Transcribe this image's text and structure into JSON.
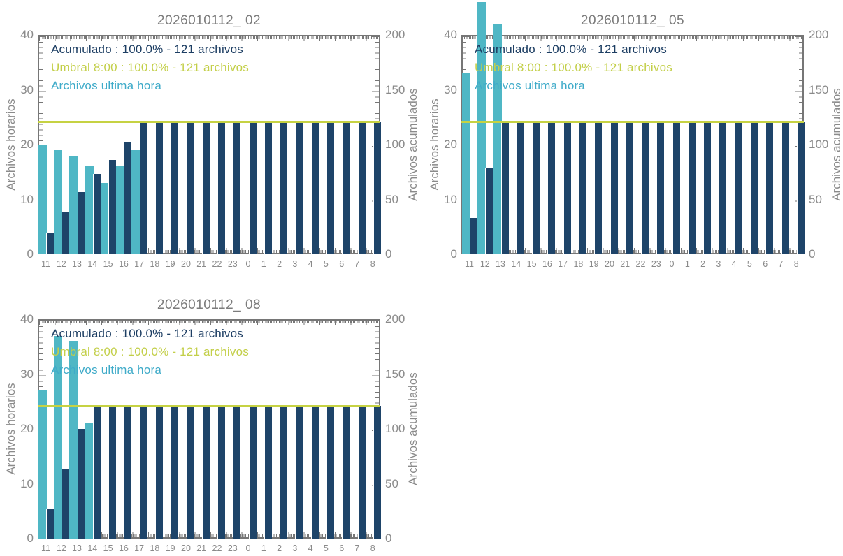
{
  "page": {
    "background": "#ffffff"
  },
  "colors": {
    "teal_bar": "#4FB7C5",
    "navy_bar": "#1E4469",
    "threshold_line": "#C6D243",
    "legend_navy_text": "#1D3E63",
    "legend_yellow_text": "#C3CF49",
    "legend_teal_text": "#3FABC9",
    "axis_frame": "#767676",
    "axis_label_grey": "#8A8A8A",
    "title_grey": "#7C7C7C"
  },
  "chart_data": [
    {
      "type": "bar",
      "title": "2026010112_ 02",
      "x_categories": [
        "11",
        "12",
        "13",
        "14",
        "15",
        "16",
        "17",
        "18",
        "19",
        "20",
        "21",
        "22",
        "23",
        "0",
        "1",
        "2",
        "3",
        "4",
        "5",
        "6",
        "7",
        "8"
      ],
      "series": [
        {
          "name": "Archivos ultima hora",
          "axis": "left",
          "color": "#4FB7C5",
          "values": [
            20,
            19,
            18,
            16,
            13,
            16,
            19,
            0,
            0,
            0,
            0,
            0,
            0,
            0,
            0,
            0,
            0,
            0,
            0,
            0,
            0,
            0
          ]
        },
        {
          "name": "Acumulado",
          "axis": "right",
          "color": "#1E4469",
          "values": [
            20,
            39,
            57,
            73,
            86,
            102,
            121,
            121,
            121,
            121,
            121,
            121,
            121,
            121,
            121,
            121,
            121,
            121,
            121,
            121,
            121,
            121
          ]
        }
      ],
      "threshold": {
        "name": "Umbral 8:00",
        "axis": "right",
        "value": 121,
        "color": "#C6D243"
      },
      "legend_lines": [
        {
          "text": "Acumulado : 100.0% - 121 archivos",
          "color": "#1D3E63"
        },
        {
          "text": "Umbral 8:00 : 100.0% - 121 archivos",
          "color": "#C3CF49"
        },
        {
          "text": "Archivos ultima hora",
          "color": "#3FABC9"
        }
      ],
      "left_axis": {
        "label": "Archivos horarios",
        "range": [
          0,
          40
        ],
        "ticks": [
          40,
          30,
          20,
          10,
          0
        ]
      },
      "right_axis": {
        "label": "Archivos acumulados",
        "range": [
          0,
          200
        ],
        "ticks": [
          200,
          150,
          100,
          50,
          0
        ]
      },
      "grid": false,
      "legend_position": "top-left-inside"
    },
    {
      "type": "bar",
      "title": "2026010112_ 05",
      "x_categories": [
        "11",
        "12",
        "13",
        "14",
        "15",
        "16",
        "17",
        "18",
        "19",
        "20",
        "21",
        "22",
        "23",
        "0",
        "1",
        "2",
        "3",
        "4",
        "5",
        "6",
        "7",
        "8"
      ],
      "series": [
        {
          "name": "Archivos ultima hora",
          "axis": "left",
          "color": "#4FB7C5",
          "values": [
            33,
            46,
            42,
            0,
            0,
            0,
            0,
            0,
            0,
            0,
            0,
            0,
            0,
            0,
            0,
            0,
            0,
            0,
            0,
            0,
            0,
            0
          ]
        },
        {
          "name": "Acumulado",
          "axis": "right",
          "color": "#1E4469",
          "values": [
            33,
            79,
            121,
            121,
            121,
            121,
            121,
            121,
            121,
            121,
            121,
            121,
            121,
            121,
            121,
            121,
            121,
            121,
            121,
            121,
            121,
            121
          ]
        }
      ],
      "threshold": {
        "name": "Umbral 8:00",
        "axis": "right",
        "value": 121,
        "color": "#C6D243"
      },
      "legend_lines": [
        {
          "text": "Acumulado : 100.0% - 121 archivos",
          "color": "#1D3E63"
        },
        {
          "text": "Umbral 8:00 : 100.0% - 121 archivos",
          "color": "#C3CF49"
        },
        {
          "text": "Archivos ultima hora",
          "color": "#3FABC9"
        }
      ],
      "left_axis": {
        "label": "Archivos horarios",
        "range": [
          0,
          40
        ],
        "ticks": [
          40,
          30,
          20,
          10,
          0
        ]
      },
      "right_axis": {
        "label": "Archivos acumulados",
        "range": [
          0,
          200
        ],
        "ticks": [
          200,
          150,
          100,
          50,
          0
        ]
      },
      "grid": false,
      "legend_position": "top-left-inside"
    },
    {
      "type": "bar",
      "title": "2026010112_ 08",
      "x_categories": [
        "11",
        "12",
        "13",
        "14",
        "15",
        "16",
        "17",
        "18",
        "19",
        "20",
        "21",
        "22",
        "23",
        "0",
        "1",
        "2",
        "3",
        "4",
        "5",
        "6",
        "7",
        "8"
      ],
      "series": [
        {
          "name": "Archivos ultima hora",
          "axis": "left",
          "color": "#4FB7C5",
          "values": [
            27,
            37,
            36,
            21,
            0,
            0,
            0,
            0,
            0,
            0,
            0,
            0,
            0,
            0,
            0,
            0,
            0,
            0,
            0,
            0,
            0,
            0
          ]
        },
        {
          "name": "Acumulado",
          "axis": "right",
          "color": "#1E4469",
          "values": [
            27,
            64,
            100,
            121,
            121,
            121,
            121,
            121,
            121,
            121,
            121,
            121,
            121,
            121,
            121,
            121,
            121,
            121,
            121,
            121,
            121,
            121
          ]
        }
      ],
      "threshold": {
        "name": "Umbral 8:00",
        "axis": "right",
        "value": 121,
        "color": "#C6D243"
      },
      "legend_lines": [
        {
          "text": "Acumulado : 100.0% - 121 archivos",
          "color": "#1D3E63"
        },
        {
          "text": "Umbral 8:00 : 100.0% - 121 archivos",
          "color": "#C3CF49"
        },
        {
          "text": "Archivos ultima hora",
          "color": "#3FABC9"
        }
      ],
      "left_axis": {
        "label": "Archivos horarios",
        "range": [
          0,
          40
        ],
        "ticks": [
          40,
          30,
          20,
          10,
          0
        ]
      },
      "right_axis": {
        "label": "Archivos acumulados",
        "range": [
          0,
          200
        ],
        "ticks": [
          200,
          150,
          100,
          50,
          0
        ]
      },
      "grid": false,
      "legend_position": "top-left-inside"
    }
  ]
}
